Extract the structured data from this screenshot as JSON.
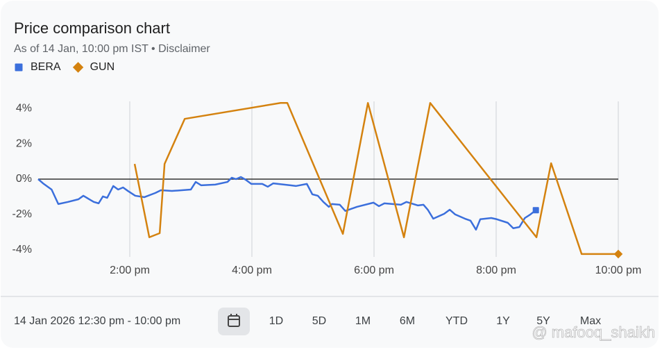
{
  "chart_data": {
    "type": "line",
    "title": "Price comparison chart",
    "subtitle": "As of 14 Jan, 10:00 pm IST • Disclaimer",
    "xlim": [
      12.5,
      22
    ],
    "xticks": [
      {
        "value": 14,
        "label": "2:00 pm"
      },
      {
        "value": 16,
        "label": "4:00 pm"
      },
      {
        "value": 18,
        "label": "6:00 pm"
      },
      {
        "value": 20,
        "label": "8:00 pm"
      },
      {
        "value": 22,
        "label": "10:00 pm"
      }
    ],
    "ylim": [
      -4.4,
      4.4
    ],
    "yticks": [
      {
        "value": 4,
        "label": "4%"
      },
      {
        "value": 2,
        "label": "2%"
      },
      {
        "value": 0,
        "label": "0%"
      },
      {
        "value": -2,
        "label": "-2%"
      },
      {
        "value": -4,
        "label": "-4%"
      }
    ],
    "grid": true,
    "series": [
      {
        "name": "BERA",
        "color": "#3b6fdc",
        "marker": "square",
        "x": [
          12.5,
          12.58,
          12.72,
          12.83,
          12.99,
          13.16,
          13.24,
          13.41,
          13.49,
          13.56,
          13.63,
          13.73,
          13.81,
          13.89,
          13.97,
          14.09,
          14.24,
          14.42,
          14.51,
          14.69,
          15.0,
          15.08,
          15.17,
          15.4,
          15.6,
          15.67,
          15.74,
          15.82,
          15.9,
          15.99,
          16.17,
          16.26,
          16.35,
          16.63,
          16.72,
          16.9,
          16.99,
          17.08,
          17.17,
          17.26,
          17.31,
          17.44,
          17.53,
          17.72,
          17.99,
          18.08,
          18.17,
          18.44,
          18.53,
          18.72,
          18.81,
          18.88,
          18.97,
          19.15,
          19.24,
          19.33,
          19.49,
          19.58,
          19.67,
          19.74,
          19.92,
          20.01,
          20.19,
          20.28,
          20.38,
          20.47,
          20.56,
          20.65
        ],
        "values": [
          0,
          -0.24,
          -0.59,
          -1.41,
          -1.29,
          -1.14,
          -0.94,
          -1.29,
          -1.37,
          -0.98,
          -1.06,
          -0.39,
          -0.59,
          -0.47,
          -0.67,
          -0.94,
          -1.02,
          -0.78,
          -0.63,
          -0.67,
          -0.59,
          -0.16,
          -0.35,
          -0.31,
          -0.16,
          0.08,
          0,
          0.12,
          -0.04,
          -0.27,
          -0.27,
          -0.43,
          -0.24,
          -0.35,
          -0.39,
          -0.27,
          -0.86,
          -0.94,
          -1.29,
          -1.57,
          -1.41,
          -1.45,
          -1.8,
          -1.57,
          -1.33,
          -1.53,
          -1.37,
          -1.45,
          -1.29,
          -1.49,
          -1.45,
          -1.73,
          -2.24,
          -1.96,
          -1.73,
          -2,
          -2.24,
          -2.35,
          -2.86,
          -2.27,
          -2.2,
          -2.27,
          -2.47,
          -2.78,
          -2.71,
          -2.2,
          -2,
          -1.76
        ]
      },
      {
        "name": "GUN",
        "color": "#d4820f",
        "marker": "diamond",
        "x": [
          14.08,
          14.32,
          14.49,
          14.57,
          14.9,
          16.47,
          16.58,
          17.49,
          17.9,
          18.49,
          18.92,
          20.66,
          20.9,
          21.4,
          22.0
        ],
        "values": [
          0.86,
          -3.29,
          -3.06,
          0.86,
          3.41,
          4.31,
          4.31,
          -3.1,
          4.31,
          -3.29,
          4.31,
          -3.29,
          0.9,
          -4.24,
          -4.24
        ]
      }
    ]
  },
  "range_bar": {
    "date_range": "14 Jan 2026 12:30 pm - 10:00 pm",
    "buttons": [
      "1D",
      "5D",
      "1M",
      "6M",
      "YTD",
      "1Y",
      "5Y",
      "Max"
    ]
  },
  "watermark": "@ mafooq_shaikh"
}
